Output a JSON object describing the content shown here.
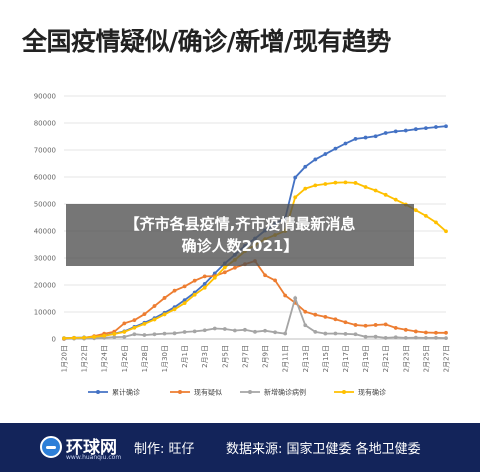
{
  "title": "全国疫情疑似/确诊/新增/现有趋势",
  "overlay": {
    "line1": "【齐市各县疫情,齐市疫情最新消息",
    "line2": "确诊人数2021】"
  },
  "footer": {
    "logo_text": "环球网",
    "logo_url": "www.huanqiu.com",
    "maker": "制作: 旺仔",
    "source": "数据来源: 国家卫健委 各地卫健委"
  },
  "chart_data": {
    "type": "line",
    "title": "全国疫情疑似/确诊/新增/现有趋势",
    "xlabel": "",
    "ylabel": "",
    "ylim": [
      0,
      90000
    ],
    "yticks": [
      0,
      10000,
      20000,
      30000,
      40000,
      50000,
      60000,
      70000,
      80000,
      90000
    ],
    "x": [
      "1月20日",
      "1月21日",
      "1月22日",
      "1月23日",
      "1月24日",
      "1月25日",
      "1月26日",
      "1月27日",
      "1月28日",
      "1月29日",
      "1月30日",
      "1月31日",
      "2月1日",
      "2月2日",
      "2月3日",
      "2月4日",
      "2月5日",
      "2月6日",
      "2月7日",
      "2月8日",
      "2月9日",
      "2月10日",
      "2月11日",
      "2月12日",
      "2月13日",
      "2月14日",
      "2月15日",
      "2月16日",
      "2月17日",
      "2月18日",
      "2月19日",
      "2月20日",
      "2月21日",
      "2月22日",
      "2月23日",
      "2月24日",
      "2月25日",
      "2月26日",
      "2月27日"
    ],
    "x_tick_labels": [
      "1月20日",
      "1月22日",
      "1月24日",
      "1月26日",
      "1月28日",
      "1月30日",
      "2月1日",
      "2月3日",
      "2月5日",
      "2月7日",
      "2月9日",
      "2月11日",
      "2月13日",
      "2月15日",
      "2月17日",
      "2月19日",
      "2月21日",
      "2月23日",
      "2月25日",
      "2月27日"
    ],
    "grid": true,
    "legend_position": "bottom",
    "series": [
      {
        "name": "累计确诊",
        "color": "#4472c4",
        "values": [
          300,
          440,
          570,
          830,
          1300,
          2000,
          2800,
          4500,
          6000,
          7700,
          9700,
          11800,
          14400,
          17200,
          20400,
          24300,
          28000,
          31200,
          34500,
          37200,
          40200,
          42600,
          44700,
          59800,
          63800,
          66500,
          68500,
          70500,
          72400,
          74100,
          74600,
          75100,
          76300,
          76900,
          77200,
          77700,
          78100,
          78500,
          78800
        ]
      },
      {
        "name": "现有疑似",
        "color": "#ed7d31",
        "values": [
          0,
          400,
          390,
          1070,
          1970,
          2700,
          5800,
          6970,
          9200,
          12200,
          15200,
          17900,
          19500,
          21600,
          23200,
          23300,
          24700,
          26400,
          27700,
          28900,
          23600,
          21700,
          16100,
          13400,
          10100,
          9000,
          8200,
          7300,
          6200,
          5200,
          4900,
          5200,
          5400,
          4100,
          3400,
          2800,
          2400,
          2300,
          2300
        ]
      },
      {
        "name": "新增确诊病例",
        "color": "#a5a5a5",
        "values": [
          77,
          149,
          131,
          259,
          444,
          688,
          769,
          1771,
          1459,
          1737,
          1982,
          2102,
          2590,
          2829,
          3235,
          3887,
          3694,
          3143,
          3399,
          2656,
          3062,
          2478,
          2015,
          15152,
          5090,
          2641,
          2009,
          2048,
          1886,
          1749,
          820,
          889,
          397,
          648,
          409,
          508,
          406,
          433,
          327
        ]
      },
      {
        "name": "现有确诊",
        "color": "#ffc000",
        "values": [
          280,
          410,
          520,
          770,
          1200,
          1870,
          2620,
          4160,
          5600,
          7200,
          9100,
          11000,
          13300,
          16400,
          19000,
          22700,
          26500,
          29300,
          32500,
          34800,
          37000,
          38500,
          40000,
          52500,
          55700,
          56900,
          57400,
          57900,
          58000,
          57800,
          56300,
          55000,
          53400,
          51600,
          49800,
          47700,
          45600,
          43200,
          39900
        ]
      }
    ]
  }
}
